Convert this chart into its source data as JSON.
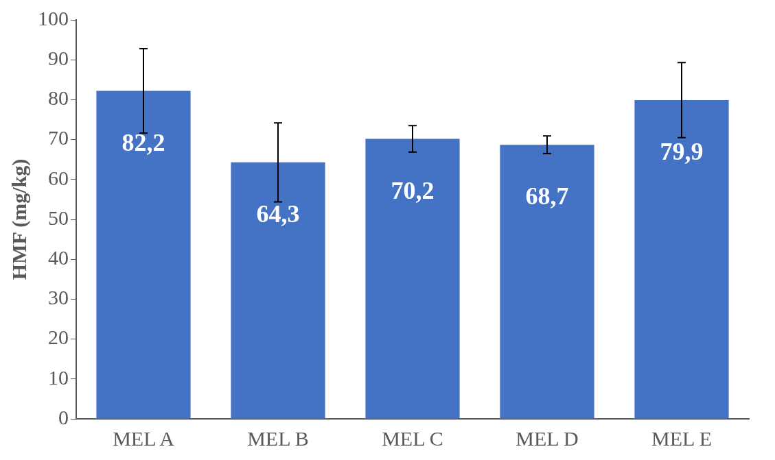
{
  "chart_data": {
    "type": "bar",
    "ylabel": "HMF (mg/kg)",
    "categories": [
      "MEL A",
      "MEL B",
      "MEL C",
      "MEL D",
      "MEL E"
    ],
    "values": [
      82.2,
      64.3,
      70.2,
      68.7,
      79.9
    ],
    "value_labels": [
      "82,2",
      "64,3",
      "70,2",
      "68,7",
      "79,9"
    ],
    "errors": [
      10.6,
      9.9,
      3.3,
      2.2,
      9.4
    ],
    "color": "#4472c4",
    "ylim": [
      0,
      100
    ],
    "yticks": [
      0,
      10,
      20,
      30,
      40,
      50,
      60,
      70,
      80,
      90,
      100
    ],
    "grid": false,
    "legend": false
  }
}
